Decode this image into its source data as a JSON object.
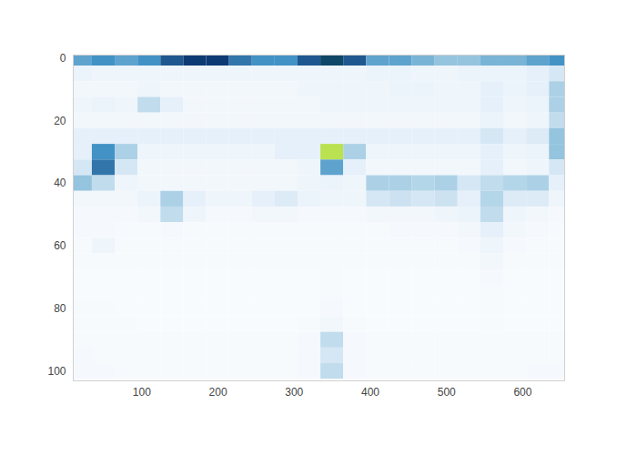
{
  "chart_data": {
    "type": "heatmap",
    "x": [
      20,
      50,
      80,
      110,
      140,
      170,
      200,
      230,
      260,
      290,
      320,
      350,
      380,
      410,
      440,
      470,
      500,
      530,
      560,
      590,
      620,
      650
    ],
    "y": [
      0,
      5,
      10,
      15,
      20,
      25,
      30,
      35,
      40,
      45,
      50,
      55,
      60,
      65,
      70,
      75,
      80,
      85,
      90,
      95,
      100
    ],
    "z": [
      [
        0.45,
        0.5,
        0.45,
        0.5,
        0.6,
        0.65,
        0.65,
        0.55,
        0.5,
        0.5,
        0.6,
        0.7,
        0.6,
        0.45,
        0.45,
        0.4,
        0.35,
        0.35,
        0.4,
        0.4,
        0.45,
        0.5
      ],
      [
        0.12,
        0.1,
        0.1,
        0.1,
        0.1,
        0.1,
        0.1,
        0.1,
        0.1,
        0.1,
        0.1,
        0.1,
        0.1,
        0.12,
        0.12,
        0.1,
        0.1,
        0.12,
        0.12,
        0.12,
        0.15,
        0.2
      ],
      [
        0.08,
        0.08,
        0.08,
        0.1,
        0.08,
        0.08,
        0.08,
        0.08,
        0.08,
        0.08,
        0.1,
        0.1,
        0.1,
        0.1,
        0.12,
        0.12,
        0.1,
        0.1,
        0.15,
        0.12,
        0.15,
        0.3
      ],
      [
        0.1,
        0.12,
        0.1,
        0.25,
        0.15,
        0.08,
        0.08,
        0.08,
        0.08,
        0.08,
        0.08,
        0.1,
        0.1,
        0.1,
        0.1,
        0.1,
        0.1,
        0.1,
        0.15,
        0.1,
        0.12,
        0.3
      ],
      [
        0.08,
        0.08,
        0.08,
        0.08,
        0.08,
        0.08,
        0.08,
        0.08,
        0.08,
        0.08,
        0.08,
        0.08,
        0.08,
        0.08,
        0.08,
        0.08,
        0.08,
        0.08,
        0.12,
        0.08,
        0.1,
        0.25
      ],
      [
        0.15,
        0.15,
        0.15,
        0.15,
        0.15,
        0.15,
        0.15,
        0.15,
        0.15,
        0.15,
        0.15,
        0.15,
        0.15,
        0.15,
        0.15,
        0.15,
        0.15,
        0.15,
        0.2,
        0.15,
        0.18,
        0.35
      ],
      [
        0.15,
        0.5,
        0.3,
        0.1,
        0.1,
        0.1,
        0.1,
        0.1,
        0.1,
        0.15,
        0.15,
        0.95,
        0.3,
        0.1,
        0.1,
        0.1,
        0.1,
        0.1,
        0.15,
        0.1,
        0.12,
        0.35
      ],
      [
        0.2,
        0.55,
        0.2,
        0.08,
        0.08,
        0.08,
        0.08,
        0.08,
        0.08,
        0.08,
        0.1,
        0.45,
        0.15,
        0.08,
        0.08,
        0.08,
        0.08,
        0.08,
        0.15,
        0.08,
        0.1,
        0.2
      ],
      [
        0.35,
        0.25,
        0.1,
        0.08,
        0.08,
        0.08,
        0.08,
        0.08,
        0.08,
        0.08,
        0.1,
        0.12,
        0.1,
        0.3,
        0.3,
        0.28,
        0.3,
        0.2,
        0.25,
        0.28,
        0.3,
        0.15
      ],
      [
        0.08,
        0.08,
        0.08,
        0.12,
        0.3,
        0.15,
        0.1,
        0.1,
        0.15,
        0.18,
        0.12,
        0.1,
        0.1,
        0.2,
        0.22,
        0.2,
        0.22,
        0.15,
        0.28,
        0.18,
        0.18,
        0.1
      ],
      [
        0.06,
        0.06,
        0.06,
        0.08,
        0.25,
        0.1,
        0.06,
        0.06,
        0.08,
        0.08,
        0.06,
        0.06,
        0.06,
        0.08,
        0.08,
        0.08,
        0.1,
        0.12,
        0.25,
        0.1,
        0.08,
        0.06
      ],
      [
        0.06,
        0.06,
        0.05,
        0.05,
        0.06,
        0.05,
        0.05,
        0.05,
        0.05,
        0.05,
        0.05,
        0.05,
        0.05,
        0.05,
        0.06,
        0.06,
        0.06,
        0.08,
        0.15,
        0.08,
        0.06,
        0.05
      ],
      [
        0.05,
        0.1,
        0.05,
        0.05,
        0.05,
        0.05,
        0.05,
        0.05,
        0.05,
        0.05,
        0.05,
        0.05,
        0.05,
        0.05,
        0.05,
        0.05,
        0.05,
        0.06,
        0.1,
        0.06,
        0.05,
        0.05
      ],
      [
        0.05,
        0.05,
        0.05,
        0.05,
        0.05,
        0.05,
        0.05,
        0.05,
        0.05,
        0.05,
        0.05,
        0.05,
        0.05,
        0.05,
        0.05,
        0.05,
        0.05,
        0.05,
        0.08,
        0.05,
        0.05,
        0.05
      ],
      [
        0.04,
        0.04,
        0.04,
        0.04,
        0.04,
        0.04,
        0.04,
        0.04,
        0.04,
        0.04,
        0.04,
        0.05,
        0.04,
        0.04,
        0.04,
        0.04,
        0.04,
        0.04,
        0.06,
        0.04,
        0.04,
        0.04
      ],
      [
        0.04,
        0.04,
        0.04,
        0.04,
        0.04,
        0.04,
        0.04,
        0.04,
        0.04,
        0.04,
        0.04,
        0.05,
        0.04,
        0.04,
        0.04,
        0.04,
        0.04,
        0.04,
        0.05,
        0.04,
        0.04,
        0.04
      ],
      [
        0.05,
        0.05,
        0.04,
        0.04,
        0.04,
        0.04,
        0.04,
        0.04,
        0.04,
        0.04,
        0.04,
        0.06,
        0.04,
        0.04,
        0.04,
        0.04,
        0.04,
        0.04,
        0.05,
        0.04,
        0.04,
        0.04
      ],
      [
        0.05,
        0.05,
        0.05,
        0.04,
        0.04,
        0.04,
        0.04,
        0.04,
        0.04,
        0.04,
        0.05,
        0.08,
        0.05,
        0.04,
        0.04,
        0.04,
        0.04,
        0.04,
        0.05,
        0.04,
        0.04,
        0.04
      ],
      [
        0.05,
        0.05,
        0.05,
        0.05,
        0.05,
        0.05,
        0.05,
        0.05,
        0.05,
        0.05,
        0.06,
        0.25,
        0.06,
        0.05,
        0.05,
        0.05,
        0.05,
        0.05,
        0.05,
        0.05,
        0.05,
        0.05
      ],
      [
        0.06,
        0.05,
        0.05,
        0.05,
        0.05,
        0.05,
        0.05,
        0.05,
        0.05,
        0.05,
        0.06,
        0.2,
        0.06,
        0.05,
        0.05,
        0.05,
        0.05,
        0.05,
        0.05,
        0.05,
        0.05,
        0.05
      ],
      [
        0.06,
        0.06,
        0.05,
        0.05,
        0.05,
        0.05,
        0.05,
        0.05,
        0.05,
        0.05,
        0.06,
        0.25,
        0.06,
        0.05,
        0.05,
        0.05,
        0.05,
        0.05,
        0.05,
        0.05,
        0.06,
        0.06
      ]
    ],
    "zlim": [
      0,
      1
    ],
    "xlim": [
      10,
      655
    ],
    "ylim": [
      -1,
      103
    ],
    "xticks": [
      100,
      200,
      300,
      400,
      500,
      600
    ],
    "yticks": [
      0,
      20,
      40,
      60,
      80,
      100
    ],
    "grid": false
  }
}
